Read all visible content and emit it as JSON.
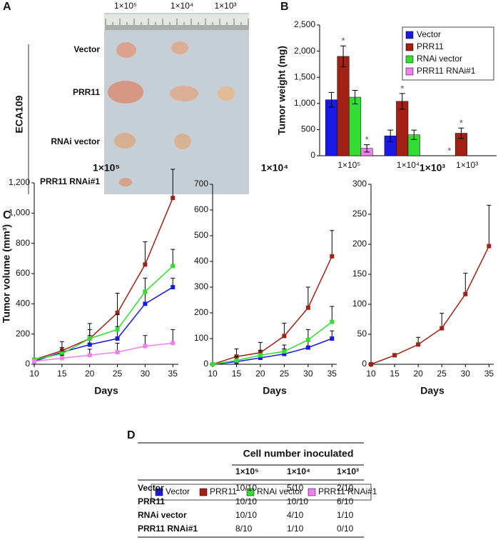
{
  "panel_labels": [
    "A",
    "B",
    "C",
    "D"
  ],
  "photo": {
    "doses": [
      "1×10⁵",
      "1×10⁴",
      "1×10³"
    ],
    "groups": [
      "Vector",
      "PRR11",
      "RNAi vector",
      "PRR11 RNAi#1"
    ],
    "cell_line": "ECA109"
  },
  "chart_data": [
    {
      "type": "bar",
      "ylabel": "Tumor weight (mg)",
      "categories": [
        "1×10⁵",
        "1×10⁴",
        "1×10³"
      ],
      "ylim": [
        0,
        2500
      ],
      "yticks": [
        0,
        500,
        {
          "value": 1000,
          "label": "1,000"
        },
        {
          "value": 1500,
          "label": "1,500"
        },
        {
          "value": 2000,
          "label": "2,000"
        },
        {
          "value": 2500,
          "label": "2,500"
        }
      ],
      "legend": "upper right",
      "series": [
        {
          "name": "Vector",
          "color": "#1a1ae6",
          "values": [
            1070,
            380,
            0
          ],
          "errors": [
            140,
            110,
            null
          ],
          "annotations": [
            null,
            null,
            "*"
          ]
        },
        {
          "name": "PRR11",
          "color": "#a32015",
          "values": [
            1900,
            1040,
            430
          ],
          "errors": [
            200,
            150,
            100
          ],
          "annotations": [
            "*",
            "*",
            "*"
          ]
        },
        {
          "name": "RNAi vector",
          "color": "#33dd33",
          "values": [
            1120,
            400,
            null
          ],
          "errors": [
            130,
            90,
            null
          ],
          "annotations": [
            null,
            null,
            null
          ]
        },
        {
          "name": "PRR11 RNAi#1",
          "color": "#f07ff0",
          "values": [
            140,
            null,
            null
          ],
          "errors": [
            70,
            null,
            null
          ],
          "annotations": [
            "*",
            null,
            null
          ]
        }
      ]
    },
    {
      "type": "line",
      "title": "1×10⁵",
      "ylabel": "Tumor volume (mm³)",
      "xlabel": "Days",
      "x": [
        10,
        15,
        20,
        25,
        30,
        35
      ],
      "xlim": [
        10,
        36
      ],
      "xticks": [
        10,
        15,
        20,
        25,
        30,
        35
      ],
      "ylim": [
        0,
        1200
      ],
      "yticks": [
        0,
        200,
        400,
        600,
        800,
        {
          "value": 1000,
          "label": "1,000"
        },
        {
          "value": 1200,
          "label": "1,200"
        }
      ],
      "series": [
        {
          "name": "Vector",
          "color": "#1a1ae6",
          "values": [
            20,
            80,
            130,
            170,
            400,
            510
          ],
          "errors": [
            10,
            30,
            60,
            80,
            70,
            60
          ]
        },
        {
          "name": "PRR11",
          "color": "#a32015",
          "values": [
            30,
            90,
            170,
            340,
            660,
            1100
          ],
          "errors": [
            10,
            60,
            100,
            130,
            150,
            190
          ]
        },
        {
          "name": "RNAi vector",
          "color": "#33dd33",
          "values": [
            30,
            70,
            170,
            230,
            480,
            650
          ],
          "errors": [
            10,
            40,
            60,
            100,
            90,
            110
          ]
        },
        {
          "name": "PRR11 RNAi#1",
          "color": "#f07ff0",
          "values": [
            20,
            40,
            60,
            80,
            120,
            140
          ],
          "errors": [
            10,
            20,
            40,
            60,
            70,
            90
          ]
        }
      ]
    },
    {
      "type": "line",
      "title": "1×10⁴",
      "xlabel": "Days",
      "x": [
        10,
        15,
        20,
        25,
        30,
        35
      ],
      "xlim": [
        10,
        36
      ],
      "xticks": [
        10,
        15,
        20,
        25,
        30,
        35
      ],
      "ylim": [
        0,
        700
      ],
      "yticks": [
        0,
        100,
        200,
        300,
        400,
        500,
        600,
        700
      ],
      "series": [
        {
          "name": "Vector",
          "color": "#1a1ae6",
          "values": [
            0,
            10,
            25,
            40,
            65,
            100
          ],
          "errors": [
            0,
            10,
            15,
            20,
            25,
            30
          ]
        },
        {
          "name": "PRR11",
          "color": "#a32015",
          "values": [
            0,
            30,
            45,
            110,
            220,
            420
          ],
          "errors": [
            0,
            30,
            40,
            50,
            80,
            100
          ]
        },
        {
          "name": "RNAi vector",
          "color": "#33dd33",
          "values": [
            0,
            15,
            35,
            50,
            95,
            165
          ],
          "errors": [
            0,
            15,
            20,
            25,
            40,
            60
          ]
        }
      ]
    },
    {
      "type": "line",
      "title": "1×10³",
      "xlabel": "Days",
      "x": [
        10,
        15,
        20,
        25,
        30,
        35
      ],
      "xlim": [
        10,
        36
      ],
      "xticks": [
        10,
        15,
        20,
        25,
        30,
        35
      ],
      "ylim": [
        0,
        300
      ],
      "yticks": [
        0,
        50,
        100,
        150,
        200,
        250,
        300
      ],
      "series": [
        {
          "name": "PRR11",
          "color": "#a32015",
          "values": [
            0,
            15,
            33,
            60,
            117,
            197
          ],
          "errors": [
            0,
            3,
            12,
            25,
            35,
            68
          ]
        }
      ]
    }
  ],
  "table": {
    "title": "Cell number inoculated",
    "columns": [
      "1×10⁵",
      "1×10⁴",
      "1×10³"
    ],
    "rows": [
      [
        "Vector",
        "10/10",
        "5/10",
        "2/10"
      ],
      [
        "PRR11",
        "10/10",
        "10/10",
        "6/10"
      ],
      [
        "RNAi vector",
        "10/10",
        "4/10",
        "1/10"
      ],
      [
        "PRR11 RNAi#1",
        "8/10",
        "1/10",
        "0/10"
      ]
    ]
  }
}
